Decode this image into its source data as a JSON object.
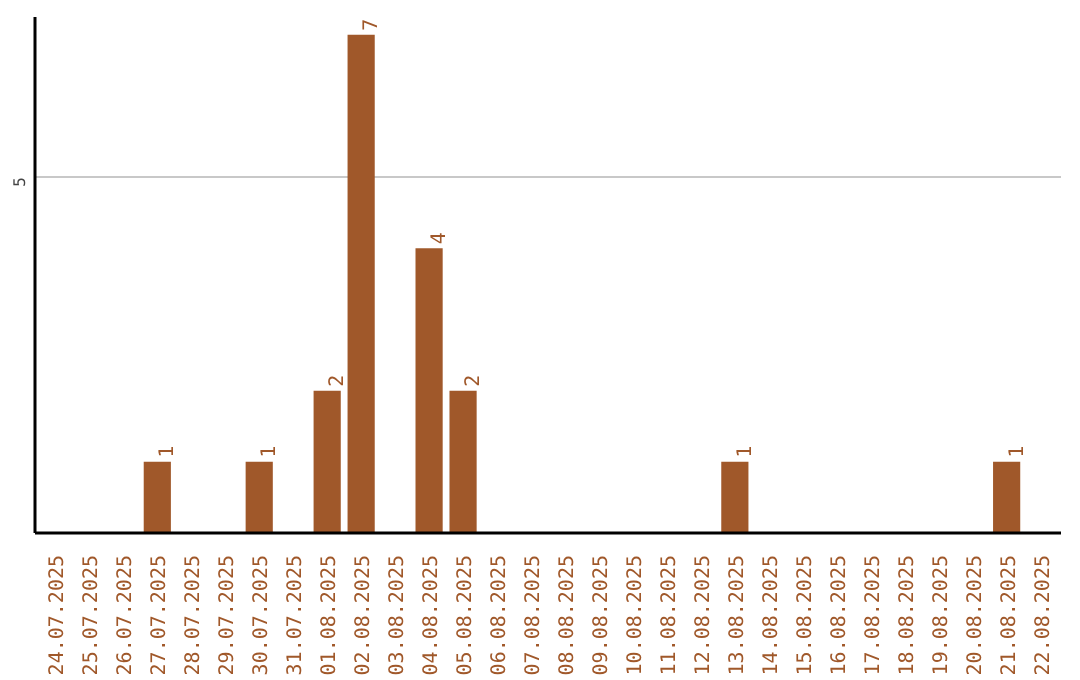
{
  "chart_data": {
    "type": "bar",
    "categories": [
      "24.07.2025",
      "25.07.2025",
      "26.07.2025",
      "27.07.2025",
      "28.07.2025",
      "29.07.2025",
      "30.07.2025",
      "31.07.2025",
      "01.08.2025",
      "02.08.2025",
      "03.08.2025",
      "04.08.2025",
      "05.08.2025",
      "06.08.2025",
      "07.08.2025",
      "08.08.2025",
      "09.08.2025",
      "10.08.2025",
      "11.08.2025",
      "12.08.2025",
      "13.08.2025",
      "14.08.2025",
      "15.08.2025",
      "16.08.2025",
      "17.08.2025",
      "18.08.2025",
      "19.08.2025",
      "20.08.2025",
      "21.08.2025",
      "22.08.2025"
    ],
    "values": [
      0,
      0,
      0,
      1,
      0,
      0,
      1,
      0,
      2,
      7,
      0,
      4,
      2,
      0,
      0,
      0,
      0,
      0,
      0,
      0,
      1,
      0,
      0,
      0,
      0,
      0,
      0,
      0,
      1,
      0
    ],
    "value_labels": [
      null,
      null,
      null,
      "1",
      null,
      null,
      "1",
      null,
      "2",
      "7",
      null,
      "4",
      "2",
      null,
      null,
      null,
      null,
      null,
      null,
      null,
      "1",
      null,
      null,
      null,
      null,
      null,
      null,
      null,
      "1",
      null
    ],
    "color": "#a0582a",
    "ylim": [
      0,
      7.25
    ],
    "yticks": [
      5
    ],
    "grid": "y"
  }
}
